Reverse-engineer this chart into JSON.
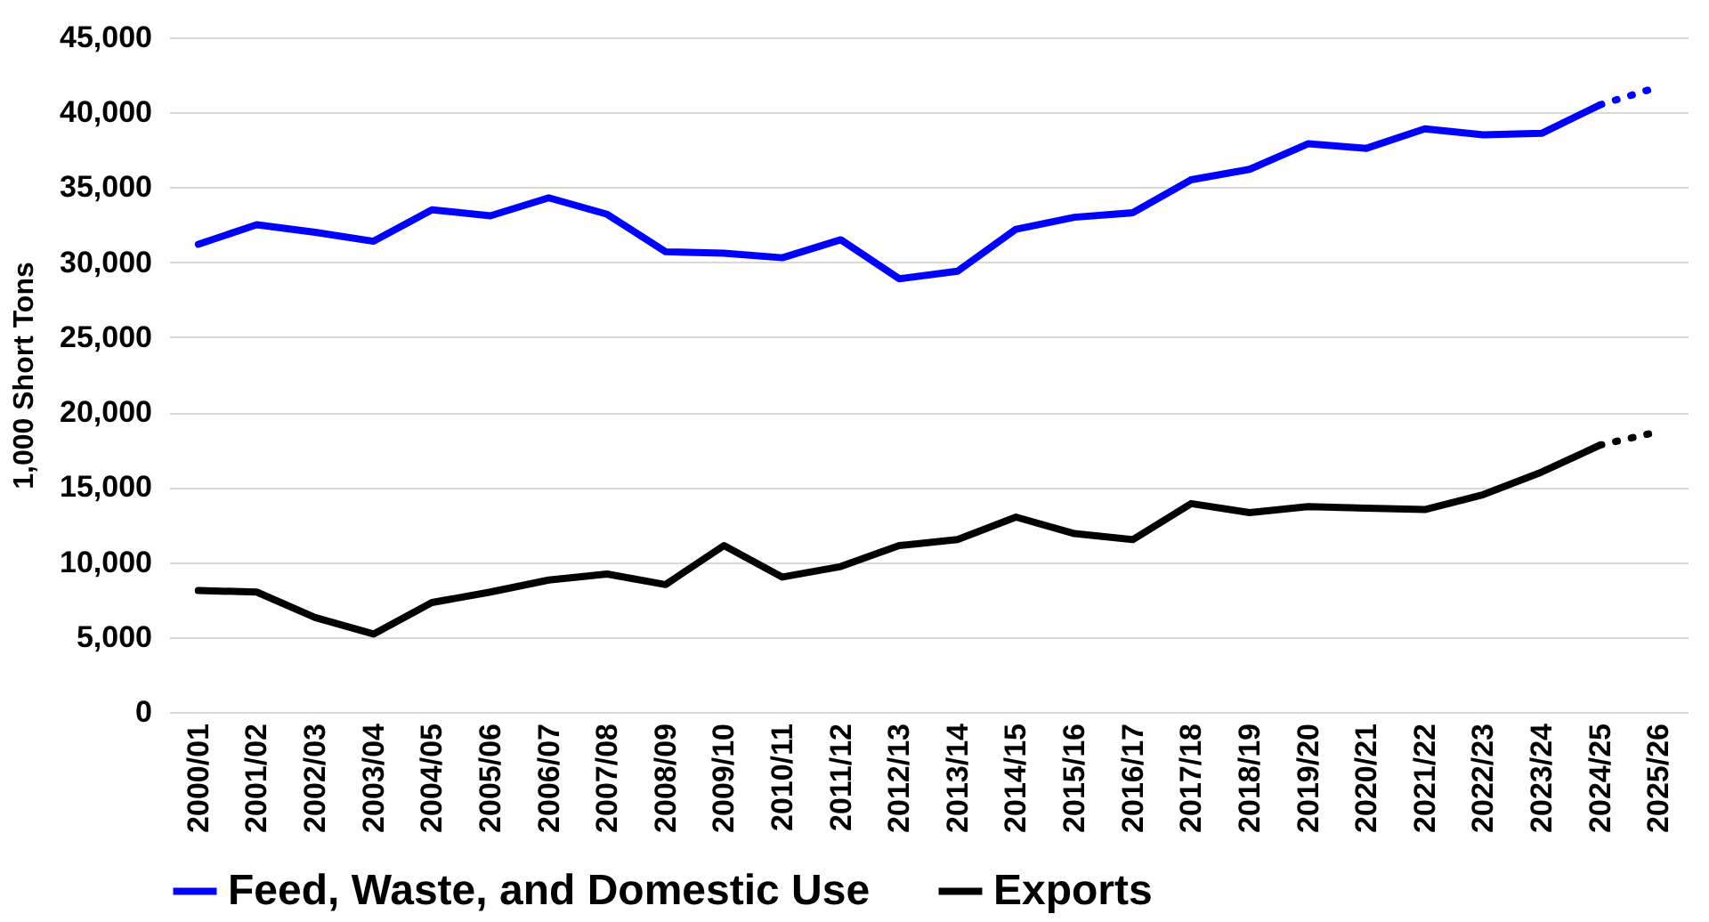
{
  "chart_data": {
    "type": "line",
    "ylabel": "1,000 Short Tons",
    "categories": [
      "2000/01",
      "2001/02",
      "2002/03",
      "2003/04",
      "2004/05",
      "2005/06",
      "2006/07",
      "2007/08",
      "2008/09",
      "2009/10",
      "2010/11",
      "2011/12",
      "2012/13",
      "2013/14",
      "2014/15",
      "2015/16",
      "2016/17",
      "2017/18",
      "2018/19",
      "2019/20",
      "2020/21",
      "2021/22",
      "2022/23",
      "2023/24",
      "2024/25",
      "2025/26"
    ],
    "series": [
      {
        "name": "Feed, Waste, and Domestic Use",
        "color": "#0000ff",
        "line_style": "solid",
        "values": [
          31200,
          32500,
          32000,
          31400,
          33500,
          33100,
          34300,
          33200,
          30700,
          30600,
          30300,
          31500,
          28900,
          29400,
          32200,
          33000,
          33300,
          35500,
          36200,
          37900,
          37600,
          38900,
          38500,
          38600,
          40500,
          null
        ]
      },
      {
        "name": "Exports",
        "color": "#000000",
        "line_style": "solid",
        "values": [
          8100,
          8000,
          6300,
          5200,
          7300,
          8000,
          8800,
          9200,
          8500,
          11100,
          9000,
          9700,
          11100,
          11500,
          13000,
          11900,
          11500,
          13900,
          13300,
          13700,
          13600,
          13500,
          14500,
          16000,
          17800,
          null
        ]
      },
      {
        "color": "#0000ff",
        "line_style": "dotted",
        "values": [
          null,
          null,
          null,
          null,
          null,
          null,
          null,
          null,
          null,
          null,
          null,
          null,
          null,
          null,
          null,
          null,
          null,
          null,
          null,
          null,
          null,
          null,
          null,
          null,
          40500,
          41700
        ]
      },
      {
        "color": "#000000",
        "line_style": "dotted",
        "values": [
          null,
          null,
          null,
          null,
          null,
          null,
          null,
          null,
          null,
          null,
          null,
          null,
          null,
          null,
          null,
          null,
          null,
          null,
          null,
          null,
          null,
          null,
          null,
          null,
          17800,
          18700
        ]
      }
    ],
    "ylim": [
      0,
      45000
    ],
    "yticks": [
      0,
      {
        "value": 5000,
        "label": "5,000"
      },
      {
        "value": 10000,
        "label": "10,000"
      },
      {
        "value": 15000,
        "label": "15,000"
      },
      {
        "value": 20000,
        "label": "20,000"
      },
      {
        "value": 25000,
        "label": "25,000"
      },
      {
        "value": 30000,
        "label": "30,000"
      },
      {
        "value": 35000,
        "label": "35,000"
      },
      {
        "value": 40000,
        "label": "40,000"
      },
      {
        "value": 45000,
        "label": "45,000"
      }
    ],
    "grid": "y",
    "legend": "bottom",
    "marker": "none"
  }
}
